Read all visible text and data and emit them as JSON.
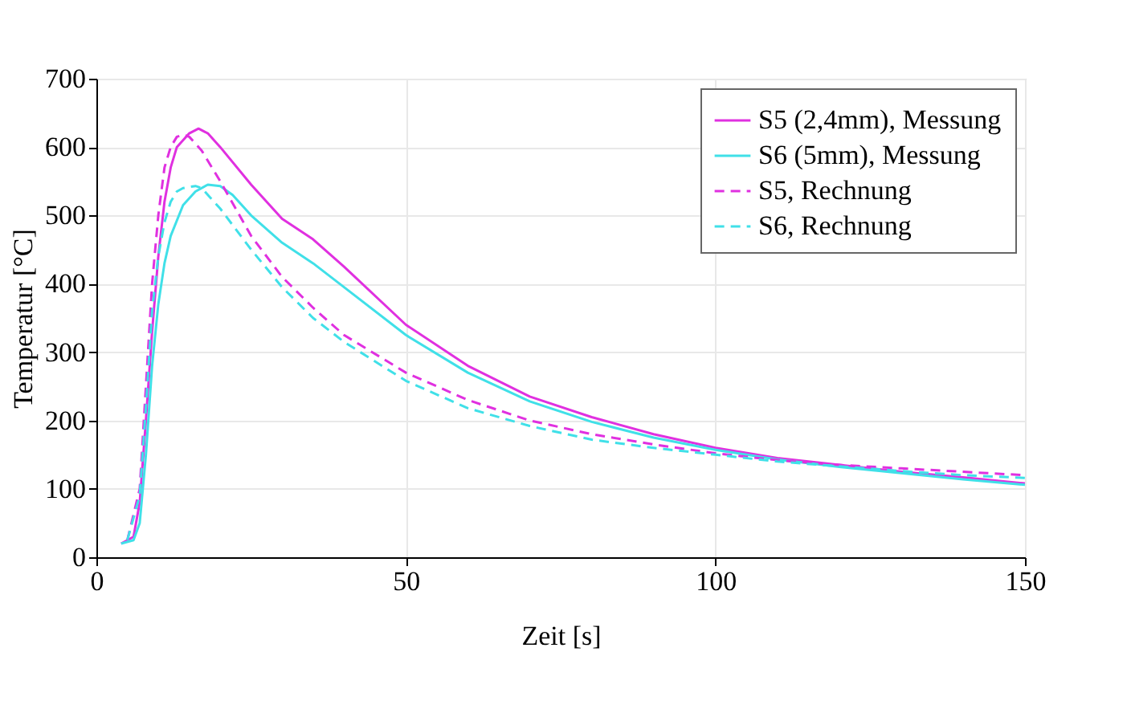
{
  "chart_data": {
    "type": "line",
    "xlabel": "Zeit [s]",
    "ylabel": "Temperatur [°C]",
    "xlim": [
      0,
      150
    ],
    "xticks": [
      0,
      50,
      100,
      150
    ],
    "ylim": [
      0,
      700
    ],
    "yticks": [
      0,
      100,
      200,
      300,
      400,
      500,
      600,
      700
    ],
    "grid": true,
    "legend": "top right",
    "marker": "none",
    "series": [
      {
        "name": "S5 (2,4mm), Messung",
        "color": "#e030e0",
        "line_style": "solid",
        "x": [
          4,
          6,
          7,
          8,
          9,
          10,
          11,
          12,
          13,
          15,
          16.5,
          18,
          20,
          25,
          30,
          35,
          40,
          50,
          60,
          70,
          80,
          90,
          100,
          110,
          120,
          130,
          140,
          150
        ],
        "values": [
          20,
          30,
          80,
          200,
          330,
          440,
          520,
          570,
          600,
          620,
          627,
          620,
          600,
          545,
          495,
          465,
          425,
          340,
          280,
          235,
          205,
          180,
          160,
          145,
          135,
          125,
          117,
          108
        ]
      },
      {
        "name": "S6 (5mm), Messung",
        "color": "#40e0e8",
        "line_style": "solid",
        "x": [
          4,
          6,
          7,
          8,
          9,
          10,
          11,
          12,
          14,
          16,
          18,
          20,
          22,
          25,
          30,
          35,
          40,
          50,
          60,
          70,
          80,
          90,
          100,
          110,
          120,
          130,
          140,
          150
        ],
        "values": [
          20,
          25,
          50,
          150,
          280,
          370,
          430,
          470,
          515,
          535,
          545,
          543,
          530,
          500,
          460,
          430,
          395,
          325,
          270,
          228,
          198,
          175,
          157,
          143,
          132,
          123,
          114,
          106
        ]
      },
      {
        "name": "S5, Rechnung",
        "color": "#e030e0",
        "line_style": "dashed",
        "x": [
          5,
          7,
          8,
          9,
          10,
          11,
          12,
          13,
          14,
          15,
          17,
          20,
          25,
          30,
          35,
          40,
          50,
          60,
          70,
          80,
          90,
          100,
          110,
          120,
          130,
          140,
          150
        ],
        "values": [
          25,
          100,
          250,
          400,
          500,
          570,
          600,
          615,
          618,
          615,
          595,
          550,
          470,
          410,
          365,
          325,
          270,
          230,
          200,
          180,
          165,
          152,
          142,
          135,
          130,
          125,
          120
        ]
      },
      {
        "name": "S6, Rechnung",
        "color": "#40e0e8",
        "line_style": "dashed",
        "x": [
          5,
          7,
          8,
          9,
          10,
          11,
          12,
          13,
          14,
          16,
          17,
          20,
          25,
          30,
          35,
          40,
          50,
          60,
          70,
          80,
          90,
          100,
          110,
          120,
          130,
          140,
          150
        ],
        "values": [
          25,
          90,
          220,
          360,
          440,
          490,
          520,
          535,
          540,
          543,
          540,
          510,
          450,
          395,
          350,
          315,
          258,
          218,
          192,
          172,
          160,
          150,
          140,
          133,
          126,
          120,
          116
        ]
      }
    ]
  }
}
